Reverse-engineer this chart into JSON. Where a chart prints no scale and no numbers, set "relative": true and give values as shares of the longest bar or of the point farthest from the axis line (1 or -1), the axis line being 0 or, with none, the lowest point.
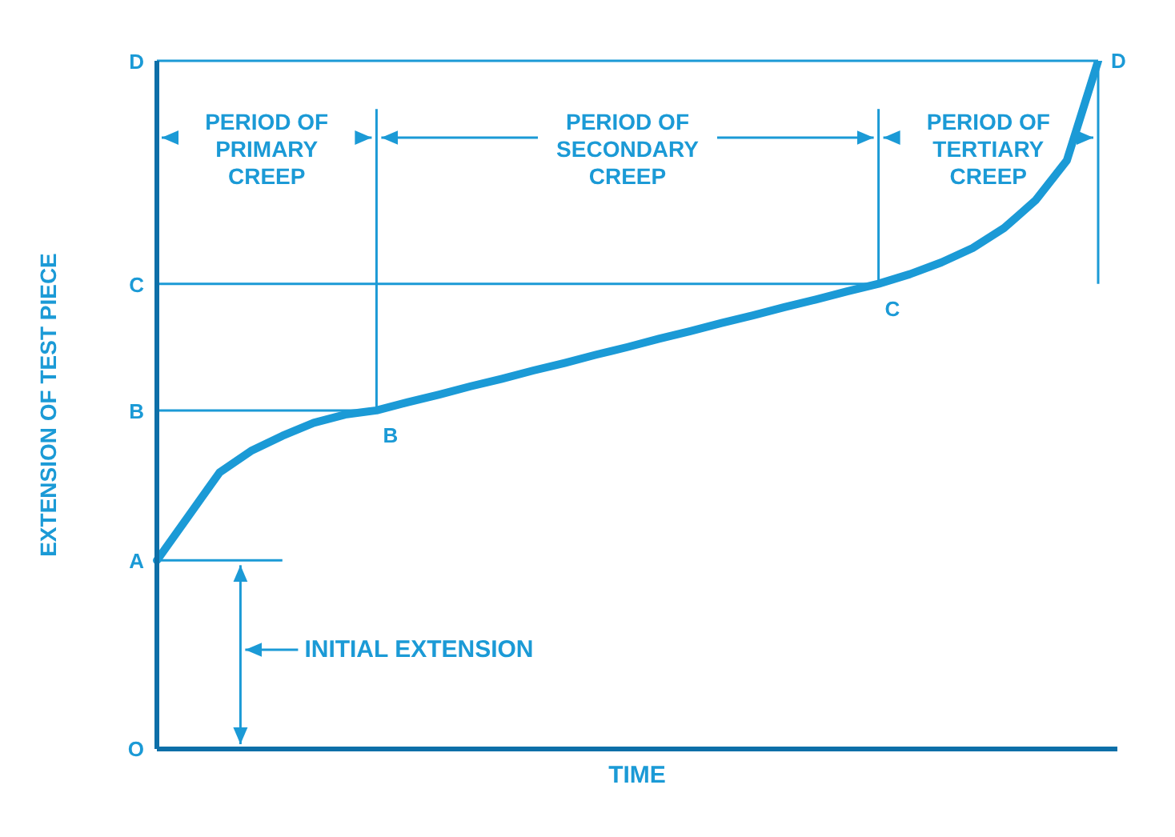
{
  "chart_data": {
    "type": "line",
    "xlabel": "TIME",
    "ylabel": "EXTENSION OF TEST PIECE",
    "relative": true,
    "categories": [
      null,
      null,
      null,
      null,
      null,
      null,
      null,
      null,
      null,
      null,
      null,
      null,
      null,
      null,
      null,
      null,
      null,
      null,
      null,
      null,
      null,
      null,
      null,
      null,
      null,
      null,
      null,
      null,
      null,
      null,
      null
    ],
    "series": [
      {
        "color": "#1b9ad6",
        "values": [
          0.274,
          0.338,
          0.402,
          0.433,
          0.455,
          0.474,
          0.486,
          0.492,
          0.504,
          0.515,
          0.527,
          0.538,
          0.55,
          0.561,
          0.573,
          0.584,
          0.596,
          0.607,
          0.619,
          0.63,
          0.642,
          0.653,
          0.665,
          0.676,
          0.69,
          0.707,
          0.728,
          0.757,
          0.797,
          0.855,
          1.0
        ]
      }
    ],
    "line_style": "solid",
    "ref_lines": [
      {
        "axis": "y",
        "value": 0.274,
        "label": "A"
      },
      {
        "axis": "y",
        "value": 0.492,
        "label": "B"
      },
      {
        "axis": "y",
        "value": 0.676,
        "label": "C"
      },
      {
        "axis": "y",
        "value": 1.0,
        "label": "D"
      }
    ],
    "annotations": [
      "PERIOD OF PRIMARY CREEP",
      "PERIOD OF SECONDARY CREEP",
      "PERIOD OF TERTIARY CREEP",
      "INITIAL EXTENSION",
      "O",
      "B",
      "C",
      "D"
    ]
  }
}
